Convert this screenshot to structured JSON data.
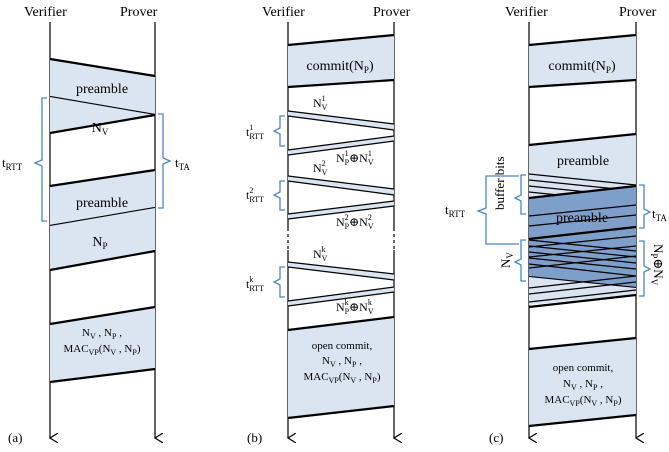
{
  "panel_a": {
    "verifier": "Verifier",
    "prover": "Prover",
    "preamble_1": "preamble",
    "nv": "N_V",
    "preamble_2": "preamble",
    "np": "N_P",
    "final_line1": "N_V , N_P ,",
    "final_line2": "MAC_VP(N_V , N_P)",
    "t_rtt": "t_RTT",
    "t_ta": "t_TA",
    "caption": "(a)"
  },
  "panel_b": {
    "verifier": "Verifier",
    "prover": "Prover",
    "commit": "commit(N_P)",
    "nv1": "N_V^1",
    "xor1": "N_P^1⊕N_V^1",
    "nv2": "N_V^2",
    "xor2": "N_P^2⊕N_V^2",
    "nvk": "N_V^k",
    "xork": "N_P^k⊕N_V^k",
    "t1": "t_RTT^1",
    "t2": "t_RTT^2",
    "tk": "t_RTT^k",
    "open_line1": "open commit,",
    "open_line2": "N_V , N_P ,",
    "open_line3": "MAC_VP(N_V , N_P)",
    "caption": "(b)"
  },
  "panel_c": {
    "verifier": "Verifier",
    "prover": "Prover",
    "commit": "commit(N_P)",
    "preamble_1": "preamble",
    "buffer_bits": "buffer bits",
    "preamble_2": "preamble",
    "nv": "N_V",
    "xor": "N_P⊕N_V",
    "t_rtt": "t_RTT",
    "t_ta": "t_TA",
    "open_line1": "open commit,",
    "open_line2": "N_V , N_P ,",
    "open_line3": "MAC_VP(N_V , N_P)",
    "caption": "(c)"
  },
  "colors": {
    "message_fill": "#dbe5f1",
    "overlap_fill": "#7f9fcb",
    "brace": "#4a86c5"
  }
}
